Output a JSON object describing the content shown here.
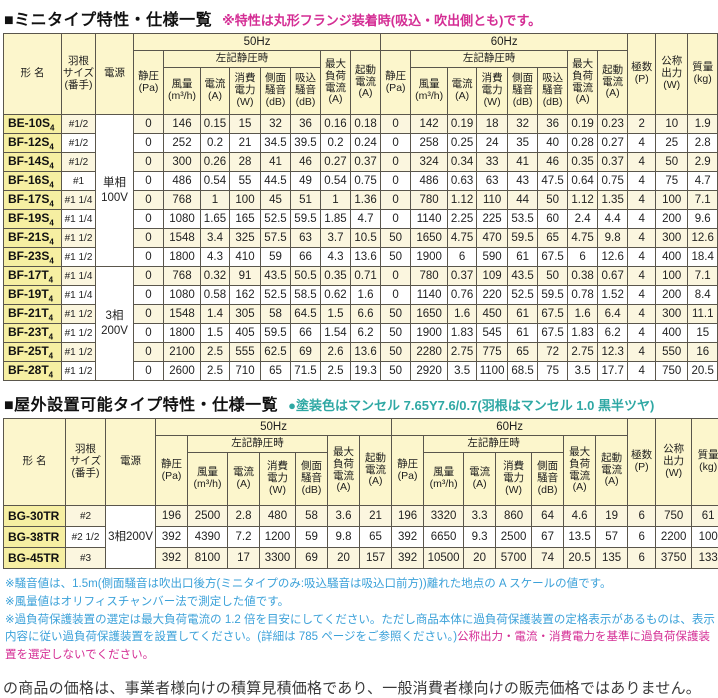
{
  "colors": {
    "accent_magenta": "#d42d94",
    "accent_teal": "#2fa8a4",
    "note_blue": "#3ba1d9",
    "header_yellow": "#fcf6cc",
    "model_yellow": "#f6efa2",
    "stripe_cream": "#fbf6df"
  },
  "mini_table": {
    "title": "■ミニタイプ特性・仕様一覧",
    "title_note": "※特性は丸形フランジ装着時(吸込・吹出側とも)です。",
    "headers": {
      "model": "形  名",
      "blade": "羽根\nサイズ\n(番手)",
      "power": "電源",
      "hz50": "50Hz",
      "hz60": "60Hz",
      "static_pressure": "静圧\n(Pa)",
      "at_static": "左記静圧時",
      "airflow": "風量\n(m³/h)",
      "current": "電流\n(A)",
      "power_w": "消費\n電力\n(W)",
      "side_noise": "側面\n騒音\n(dB)",
      "suction_noise": "吸込\n騒音\n(dB)",
      "max_load": "最大\n負荷\n電流\n(A)",
      "starting": "起動\n電流\n(A)",
      "poles": "極数\n(P)",
      "output": "公称\n出力\n(W)",
      "mass": "質量\n(kg)"
    },
    "power_groups": [
      {
        "label": "単相\n100V",
        "start": 0,
        "rows": 8
      },
      {
        "label": "3相\n200V",
        "start": 8,
        "rows": 6
      }
    ],
    "rows": [
      {
        "model": "BE-10S",
        "sub": "4",
        "blade": "#1/2",
        "hz50": [
          "0",
          "146",
          "0.15",
          "15",
          "32",
          "36",
          "0.16",
          "0.18"
        ],
        "hz60": [
          "0",
          "142",
          "0.19",
          "18",
          "32",
          "36",
          "0.19",
          "0.23"
        ],
        "poles": "2",
        "output": "10",
        "mass": "1.9"
      },
      {
        "model": "BF-12S",
        "sub": "4",
        "blade": "#1/2",
        "hz50": [
          "0",
          "252",
          "0.2",
          "21",
          "34.5",
          "39.5",
          "0.2",
          "0.24"
        ],
        "hz60": [
          "0",
          "258",
          "0.25",
          "24",
          "35",
          "40",
          "0.28",
          "0.27"
        ],
        "poles": "4",
        "output": "25",
        "mass": "2.8"
      },
      {
        "model": "BF-14S",
        "sub": "4",
        "blade": "#1/2",
        "hz50": [
          "0",
          "300",
          "0.26",
          "28",
          "41",
          "46",
          "0.27",
          "0.37"
        ],
        "hz60": [
          "0",
          "324",
          "0.34",
          "33",
          "41",
          "46",
          "0.35",
          "0.37"
        ],
        "poles": "4",
        "output": "50",
        "mass": "2.9"
      },
      {
        "model": "BF-16S",
        "sub": "4",
        "blade": "#1",
        "hz50": [
          "0",
          "486",
          "0.54",
          "55",
          "44.5",
          "49",
          "0.54",
          "0.75"
        ],
        "hz60": [
          "0",
          "486",
          "0.63",
          "63",
          "43",
          "47.5",
          "0.64",
          "0.75"
        ],
        "poles": "4",
        "output": "75",
        "mass": "4.7"
      },
      {
        "model": "BF-17S",
        "sub": "4",
        "blade": "#1 1/4",
        "hz50": [
          "0",
          "768",
          "1",
          "100",
          "45",
          "51",
          "1",
          "1.36"
        ],
        "hz60": [
          "0",
          "780",
          "1.12",
          "110",
          "44",
          "50",
          "1.12",
          "1.35"
        ],
        "poles": "4",
        "output": "100",
        "mass": "7.1"
      },
      {
        "model": "BF-19S",
        "sub": "4",
        "blade": "#1 1/4",
        "hz50": [
          "0",
          "1080",
          "1.65",
          "165",
          "52.5",
          "59.5",
          "1.85",
          "4.7"
        ],
        "hz60": [
          "0",
          "1140",
          "2.25",
          "225",
          "53.5",
          "60",
          "2.4",
          "4.4"
        ],
        "poles": "4",
        "output": "200",
        "mass": "9.6"
      },
      {
        "model": "BF-21S",
        "sub": "4",
        "blade": "#1 1/2",
        "hz50": [
          "0",
          "1548",
          "3.4",
          "325",
          "57.5",
          "63",
          "3.7",
          "10.5"
        ],
        "hz60": [
          "50",
          "1650",
          "4.75",
          "470",
          "59.5",
          "65",
          "4.75",
          "9.8"
        ],
        "poles": "4",
        "output": "300",
        "mass": "12.6"
      },
      {
        "model": "BF-23S",
        "sub": "4",
        "blade": "#1 1/2",
        "hz50": [
          "0",
          "1800",
          "4.3",
          "410",
          "59",
          "66",
          "4.3",
          "13.6"
        ],
        "hz60": [
          "50",
          "1900",
          "6",
          "590",
          "61",
          "67.5",
          "6",
          "12.6"
        ],
        "poles": "4",
        "output": "400",
        "mass": "18.4"
      },
      {
        "model": "BF-17T",
        "sub": "4",
        "blade": "#1 1/4",
        "hz50": [
          "0",
          "768",
          "0.32",
          "91",
          "43.5",
          "50.5",
          "0.35",
          "0.71"
        ],
        "hz60": [
          "0",
          "780",
          "0.37",
          "109",
          "43.5",
          "50",
          "0.38",
          "0.67"
        ],
        "poles": "4",
        "output": "100",
        "mass": "7.1"
      },
      {
        "model": "BF-19T",
        "sub": "4",
        "blade": "#1 1/4",
        "hz50": [
          "0",
          "1080",
          "0.58",
          "162",
          "52.5",
          "58.5",
          "0.62",
          "1.6"
        ],
        "hz60": [
          "0",
          "1140",
          "0.76",
          "220",
          "52.5",
          "59.5",
          "0.78",
          "1.52"
        ],
        "poles": "4",
        "output": "200",
        "mass": "8.4"
      },
      {
        "model": "BF-21T",
        "sub": "4",
        "blade": "#1 1/2",
        "hz50": [
          "0",
          "1548",
          "1.4",
          "305",
          "58",
          "64.5",
          "1.5",
          "6.6"
        ],
        "hz60": [
          "50",
          "1650",
          "1.6",
          "450",
          "61",
          "67.5",
          "1.6",
          "6.4"
        ],
        "poles": "4",
        "output": "300",
        "mass": "11.1"
      },
      {
        "model": "BF-23T",
        "sub": "4",
        "blade": "#1 1/2",
        "hz50": [
          "0",
          "1800",
          "1.5",
          "405",
          "59.5",
          "66",
          "1.54",
          "6.2"
        ],
        "hz60": [
          "50",
          "1900",
          "1.83",
          "545",
          "61",
          "67.5",
          "1.83",
          "6.2"
        ],
        "poles": "4",
        "output": "400",
        "mass": "15"
      },
      {
        "model": "BF-25T",
        "sub": "4",
        "blade": "#1 1/2",
        "hz50": [
          "0",
          "2100",
          "2.5",
          "555",
          "62.5",
          "69",
          "2.6",
          "13.6"
        ],
        "hz60": [
          "50",
          "2280",
          "2.75",
          "775",
          "65",
          "72",
          "2.75",
          "12.3"
        ],
        "poles": "4",
        "output": "550",
        "mass": "16"
      },
      {
        "model": "BF-28T",
        "sub": "4",
        "blade": "#1 1/2",
        "hz50": [
          "0",
          "2600",
          "2.5",
          "710",
          "65",
          "71.5",
          "2.5",
          "19.3"
        ],
        "hz60": [
          "50",
          "2920",
          "3.5",
          "1100",
          "68.5",
          "75",
          "3.5",
          "17.7"
        ],
        "poles": "4",
        "output": "750",
        "mass": "20.5"
      }
    ]
  },
  "outdoor_table": {
    "title": "■屋外設置可能タイプ特性・仕様一覧",
    "title_note": "●塗装色はマンセル 7.65Y7.6/0.7(羽根はマンセル 1.0 黒半ツヤ)",
    "headers": {
      "model": "形  名",
      "blade": "羽根\nサイズ\n(番手)",
      "power": "電源",
      "hz50": "50Hz",
      "hz60": "60Hz",
      "static_pressure": "静圧\n(Pa)",
      "at_static": "左記静圧時",
      "airflow": "風量\n(m³/h)",
      "current": "電流\n(A)",
      "power_w": "消費\n電力\n(W)",
      "side_noise": "側面\n騒音\n(dB)",
      "max_load": "最大\n負荷\n電流\n(A)",
      "starting": "起動\n電流\n(A)",
      "poles": "極数\n(P)",
      "output": "公称\n出力\n(W)",
      "mass": "質量\n(kg)"
    },
    "power_groups": [
      {
        "label": "3相200V",
        "start": 0,
        "rows": 3
      }
    ],
    "rows": [
      {
        "model": "BG-30TR",
        "sub": "",
        "blade": "#2",
        "hz50": [
          "196",
          "2500",
          "2.8",
          "480",
          "58",
          "3.6",
          "21"
        ],
        "hz60": [
          "196",
          "3320",
          "3.3",
          "860",
          "64",
          "4.6",
          "19"
        ],
        "poles": "6",
        "output": "750",
        "mass": "61"
      },
      {
        "model": "BG-38TR",
        "sub": "",
        "blade": "#2 1/2",
        "hz50": [
          "392",
          "4390",
          "7.2",
          "1200",
          "59",
          "9.8",
          "65"
        ],
        "hz60": [
          "392",
          "6650",
          "9.3",
          "2500",
          "67",
          "13.5",
          "57"
        ],
        "poles": "6",
        "output": "2200",
        "mass": "100"
      },
      {
        "model": "BG-45TR",
        "sub": "",
        "blade": "#3",
        "hz50": [
          "392",
          "8100",
          "17",
          "3300",
          "69",
          "20",
          "157"
        ],
        "hz60": [
          "392",
          "10500",
          "20",
          "5700",
          "74",
          "20.5",
          "135"
        ],
        "poles": "6",
        "output": "3750",
        "mass": "133"
      }
    ]
  },
  "notes": {
    "n1": "※騒音値は、1.5m(側面騒音は吹出口後方(ミニタイプのみ:吸込騒音は吸込口前方))離れた地点の A スケールの値です。",
    "n2": "※風量値はオリフィスチャンバー法で測定した値です。",
    "n3": "※過負荷保護装置の選定は最大負荷電流の 1.2 倍を目安にしてください。ただし商品本体に過負荷保護装置の定格表示があるものは、表示内容に従い過負荷保護装置を設置してください。(詳細は 785 ページをご参照ください。)",
    "n3_highlight": "公称出力・電流・消費電力を基準に過負荷保護装置を選定しないでください。"
  },
  "footer": "の商品の価格は、事業者様向けの積算見積価格であり、一般消費者様向けの販売価格ではありません。"
}
